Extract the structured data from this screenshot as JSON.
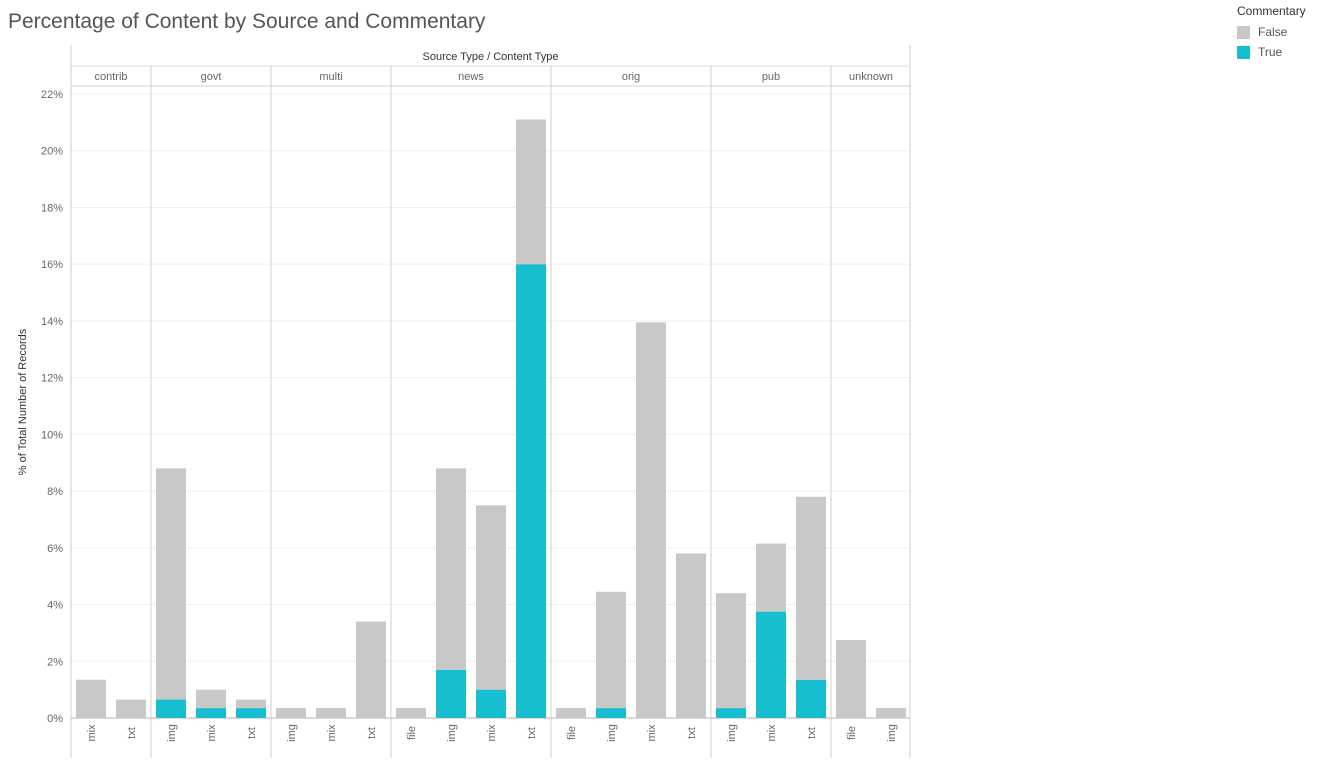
{
  "chart_data": {
    "type": "bar",
    "stacked": true,
    "title": "Percentage of Content by Source and Commentary",
    "column_header": "Source Type  /  Content Type",
    "ylabel": "% of Total Number of Records",
    "ylim": [
      0,
      22
    ],
    "yticks": [
      "0%",
      "2%",
      "4%",
      "6%",
      "8%",
      "10%",
      "12%",
      "14%",
      "16%",
      "18%",
      "20%",
      "22%"
    ],
    "grid": true,
    "legend": {
      "title": "Commentary",
      "placement": "top-right",
      "entries": [
        {
          "label": "False",
          "color": "#c8c8c8"
        },
        {
          "label": "True",
          "color": "#17becf"
        }
      ]
    },
    "groups": [
      {
        "name": "contrib",
        "bars": [
          {
            "category": "mix",
            "false": 1.35,
            "true": 0
          },
          {
            "category": "txt",
            "false": 0.65,
            "true": 0
          }
        ]
      },
      {
        "name": "govt",
        "bars": [
          {
            "category": "img",
            "false": 8.15,
            "true": 0.65
          },
          {
            "category": "mix",
            "false": 0.65,
            "true": 0.35
          },
          {
            "category": "txt",
            "false": 0.3,
            "true": 0.35
          }
        ]
      },
      {
        "name": "multi",
        "bars": [
          {
            "category": "img",
            "false": 0.35,
            "true": 0
          },
          {
            "category": "mix",
            "false": 0.35,
            "true": 0
          },
          {
            "category": "txt",
            "false": 3.4,
            "true": 0
          }
        ]
      },
      {
        "name": "news",
        "bars": [
          {
            "category": "file",
            "false": 0.35,
            "true": 0
          },
          {
            "category": "img",
            "false": 7.1,
            "true": 1.7
          },
          {
            "category": "mix",
            "false": 6.5,
            "true": 1.0
          },
          {
            "category": "txt",
            "false": 5.1,
            "true": 16.0
          }
        ]
      },
      {
        "name": "orig",
        "bars": [
          {
            "category": "file",
            "false": 0.35,
            "true": 0
          },
          {
            "category": "img",
            "false": 4.1,
            "true": 0.35
          },
          {
            "category": "mix",
            "false": 13.95,
            "true": 0
          },
          {
            "category": "txt",
            "false": 5.8,
            "true": 0
          }
        ]
      },
      {
        "name": "pub",
        "bars": [
          {
            "category": "img",
            "false": 4.05,
            "true": 0.35
          },
          {
            "category": "mix",
            "false": 2.4,
            "true": 3.75
          },
          {
            "category": "txt",
            "false": 6.45,
            "true": 1.35
          }
        ]
      },
      {
        "name": "unknown",
        "bars": [
          {
            "category": "file",
            "false": 2.75,
            "true": 0
          },
          {
            "category": "img",
            "false": 0.35,
            "true": 0
          }
        ]
      }
    ]
  }
}
